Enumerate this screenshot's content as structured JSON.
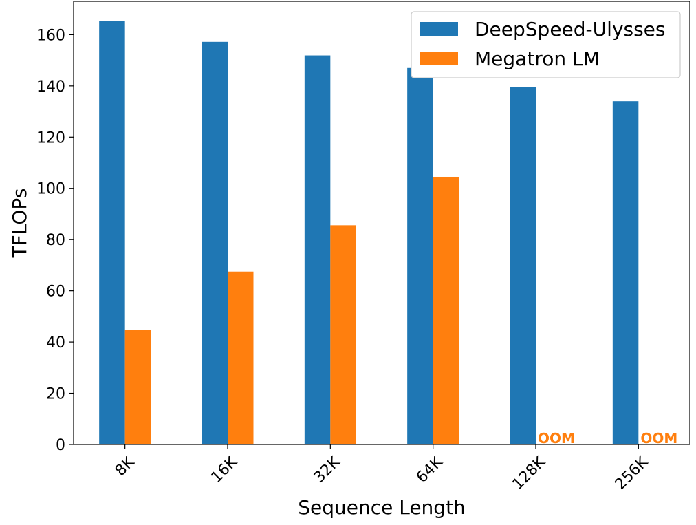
{
  "chart_data": {
    "type": "bar",
    "title": "",
    "xlabel": "Sequence Length",
    "ylabel": "TFLOPs",
    "categories": [
      "8K",
      "16K",
      "32K",
      "64K",
      "128K",
      "256K"
    ],
    "series": [
      {
        "name": "DeepSpeed-Ulysses",
        "color": "#1f77b4",
        "values": [
          165.3,
          157.2,
          151.9,
          147.0,
          139.6,
          134.0
        ]
      },
      {
        "name": "Megatron LM",
        "color": "#ff7f0e",
        "values": [
          44.8,
          67.5,
          85.6,
          104.5,
          null,
          null
        ]
      }
    ],
    "annotations": [
      {
        "series": "Megatron LM",
        "category": "128K",
        "text": "OOM",
        "color": "#ff7f0e"
      },
      {
        "series": "Megatron LM",
        "category": "256K",
        "text": "OOM",
        "color": "#ff7f0e"
      }
    ],
    "ylim": [
      0,
      173
    ],
    "yticks": [
      0,
      20,
      40,
      60,
      80,
      100,
      120,
      140,
      160
    ],
    "xtick_rotation": -45,
    "grid": false,
    "legend_position": "top-right"
  }
}
